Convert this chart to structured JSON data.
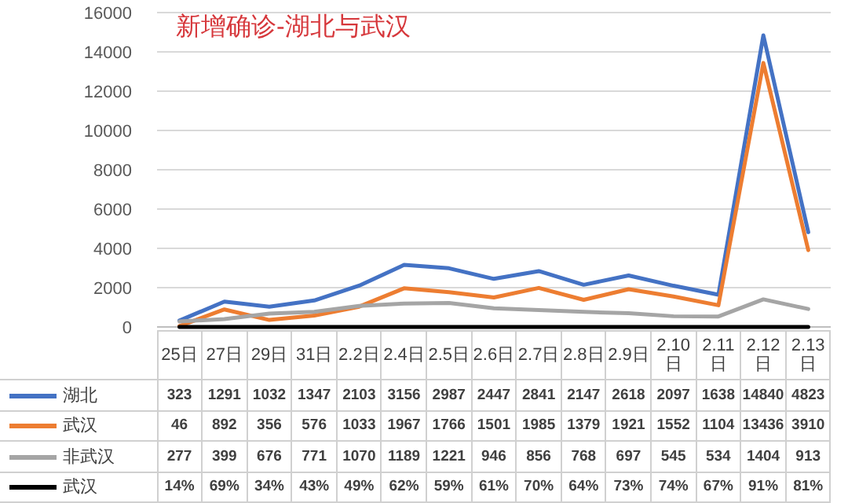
{
  "chart_data": {
    "type": "line",
    "title": "新增确诊-湖北与武汉",
    "categories": [
      "25日",
      "27日",
      "29日",
      "31日",
      "2.2日",
      "2.4日",
      "2.5日",
      "2.6日",
      "2.7日",
      "2.8日",
      "2.9日",
      "2.10日",
      "2.11日",
      "2.12日",
      "2.13日"
    ],
    "series": [
      {
        "name": "湖北",
        "color": "#4472c4",
        "values": [
          323,
          1291,
          1032,
          1347,
          2103,
          3156,
          2987,
          2447,
          2841,
          2147,
          2618,
          2097,
          1638,
          14840,
          4823
        ]
      },
      {
        "name": "武汉",
        "color": "#ed7d31",
        "values": [
          46,
          892,
          356,
          576,
          1033,
          1967,
          1766,
          1501,
          1985,
          1379,
          1921,
          1552,
          1104,
          13436,
          3910
        ]
      },
      {
        "name": "非武汉",
        "color": "#a5a5a5",
        "values": [
          277,
          399,
          676,
          771,
          1070,
          1189,
          1221,
          946,
          856,
          768,
          697,
          545,
          534,
          1404,
          913
        ]
      },
      {
        "name": "武汉",
        "color": "#000000",
        "values": [
          0.14,
          0.69,
          0.34,
          0.43,
          0.49,
          0.62,
          0.59,
          0.61,
          0.7,
          0.64,
          0.73,
          0.74,
          0.67,
          0.91,
          0.81
        ],
        "value_labels": [
          "14%",
          "69%",
          "34%",
          "43%",
          "49%",
          "62%",
          "59%",
          "61%",
          "70%",
          "64%",
          "73%",
          "74%",
          "67%",
          "91%",
          "81%"
        ]
      }
    ],
    "ylim": [
      0,
      16000
    ],
    "yticks": [
      0,
      2000,
      4000,
      6000,
      8000,
      10000,
      12000,
      14000,
      16000
    ],
    "grid": "y",
    "legend": "bottom",
    "data_labels": true,
    "marker": "none",
    "line_style": "solid"
  }
}
